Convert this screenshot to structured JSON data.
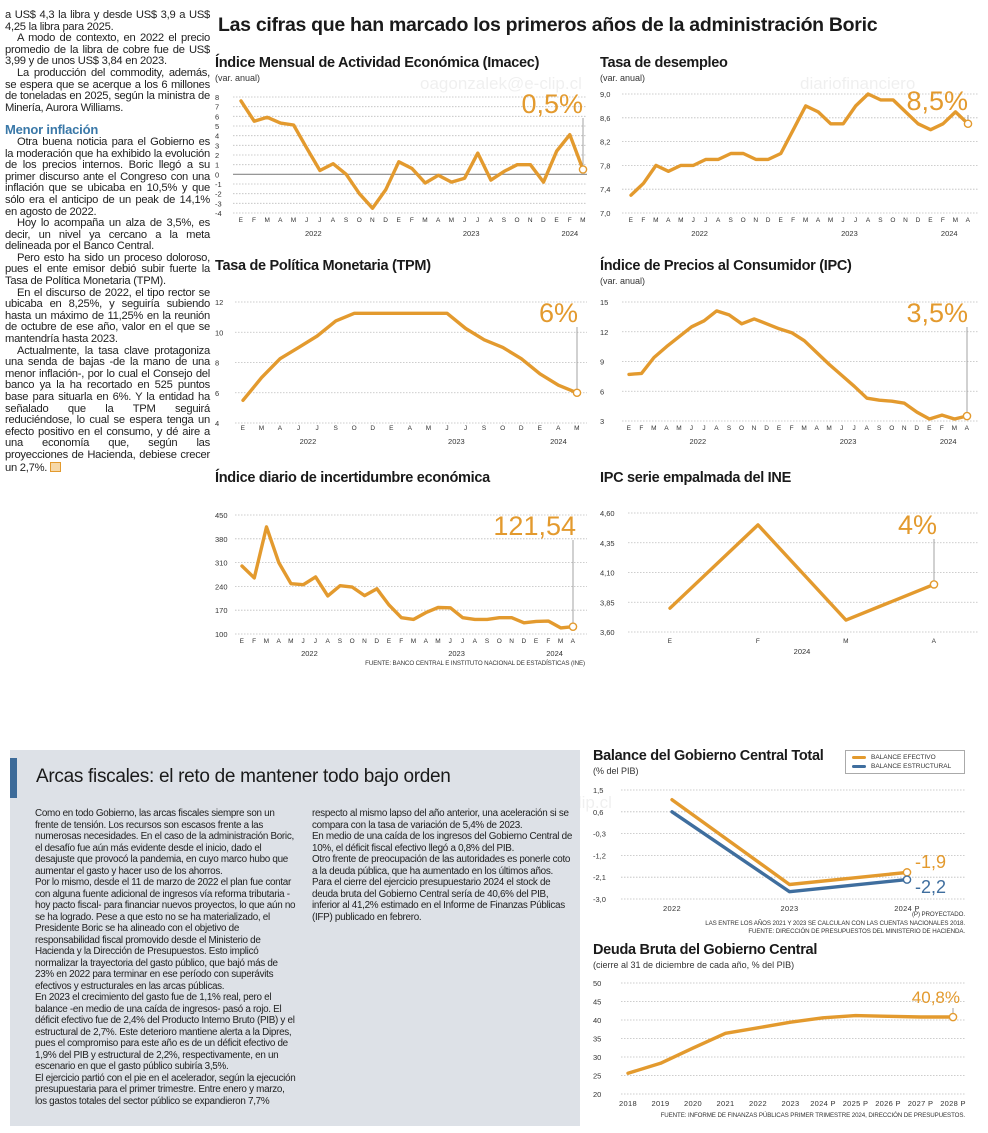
{
  "headline": "Las cifras que han marcado los primeros años de la administración Boric",
  "watermarks": [
    "oagonzalek@e-clip.cl",
    "diariofinanciero"
  ],
  "left_column": {
    "paragraphs_before": [
      "a US$ 4,3 la libra y desde US$ 3,9 a US$ 4,25 la libra para 2025.",
      "A modo de contexto, en 2022 el precio promedio de la libra de cobre fue de US$ 3,99 y de unos US$ 3,84 en 2023.",
      "La producción del commodity, además, se espera que se acerque a los 6 millones de toneladas en 2025, según la ministra de Minería, Aurora Williams."
    ],
    "subheading": "Menor inflación",
    "paragraphs_after": [
      "Otra buena noticia para el Gobierno es la moderación que ha exhibido la evolución de los precios internos. Boric llegó a su primer discurso ante el Congreso con una inflación que se ubicaba en 10,5% y que sólo era el anticipo de un peak de 14,1% en agosto de 2022.",
      "Hoy lo acompaña un alza de 3,5%, es decir, un nivel ya cercano a la meta delineada por el Banco Central.",
      "Pero esto ha sido un proceso doloroso, pues el ente emisor debió subir fuerte la Tasa de Política Monetaria (TPM).",
      "En el discurso de 2022, el tipo rector se ubicaba en 8,25%, y seguiría subiendo hasta un máximo de 11,25% en la reunión de octubre de ese año, valor en el que se mantendría hasta 2023.",
      "Actualmente, la tasa clave protagoniza una senda de bajas -de la mano de una menor inflación-, por lo cual el Consejo del banco ya la ha recortado en 525 puntos base para situarla en 6%. Y la entidad ha señalado que la TPM seguirá reduciéndose, lo cual se espera tenga un efecto positivo en el consumo, y dé aire a una economía que, según las proyecciones de Hacienda, debiese crecer un 2,7%."
    ]
  },
  "fiscal_box": {
    "title": "Arcas fiscales: el reto de mantener todo bajo orden",
    "paragraphs": [
      "Como en todo Gobierno, las arcas fiscales siempre son un frente de tensión. Los recursos son escasos frente a las numerosas necesidades. En el caso de la administración Boric, el desafío fue aún más evidente desde el inicio, dado el desajuste que provocó la pandemia, en cuyo marco hubo que aumentar el gasto y hacer uso de los ahorros.",
      "Por lo mismo, desde el 11 de marzo de 2022 el plan fue contar con alguna fuente adicional de ingresos vía reforma tributaria -hoy pacto fiscal- para financiar nuevos proyectos, lo que aún no se ha logrado. Pese a que esto no se ha materializado, el Presidente Boric se ha alineado con el objetivo de responsabilidad fiscal promovido desde el Ministerio de Hacienda y la Dirección de Presupuestos. Esto implicó normalizar la trayectoria del gasto público, que bajó más de 23% en 2022 para terminar en ese período con superávits efectivos y estructurales en las arcas públicas.",
      "En 2023 el crecimiento del gasto fue de 1,1% real, pero el balance -en medio de una caída de ingresos- pasó a rojo. El déficit efectivo fue de 2,4% del Producto Interno Bruto (PIB) y el estructural de 2,7%. Este deterioro mantiene alerta a la Dipres, pues el compromiso para este año es de un déficit efectivo de 1,9% del PIB y estructural de 2,2%, respectivamente, en un escenario en que el gasto público subiría 3,5%.",
      "El ejercicio partió con el pie en el acelerador, según la ejecución presupuestaria para el primer trimestre. Entre enero y marzo, los gastos totales del sector público se expandieron 7,7% respecto al mismo lapso del año anterior, una aceleración si se compara con la tasa de variación de 5,4% de 2023.",
      "En medio de una caída de los ingresos del Gobierno Central de 10%, el déficit fiscal efectivo llegó a 0,8% del PIB.",
      "Otro frente de preocupación de las autoridades es ponerle coto a la deuda pública, que ha aumentado en los últimos años.",
      "Para el cierre del ejercicio presupuestario 2024 el stock de deuda bruta del Gobierno Central sería de 40,6% del PIB, inferior al 41,2% estimado en el Informe de Finanzas Públicas (IFP) publicado en febrero."
    ]
  },
  "sources": {
    "indicators": "FUENTE: BANCO CENTRAL E INSTITUTO NACIONAL DE ESTADÍSTICAS (INE)",
    "balance_notes": [
      "(P) PROYECTADO.",
      "LAS ENTRE LOS AÑOS 2021 Y 2023 SE CALCULAN  CON LAS CUENTAS NACIONALES 2018.",
      "FUENTE: DIRECCIÓN DE PRESUPUESTOS DEL MINISTERIO DE HACIENDA."
    ],
    "debt": "FUENTE: INFORME DE FINANZAS PÚBLICAS PRIMER TRIMESTRE 2024, DIRECCIÓN DE PRESUPUESTOS."
  },
  "colors": {
    "orange": "#e39a2e",
    "blue": "#3f6e9e",
    "grid": "#b9b9b9",
    "box": "#dde1e7"
  },
  "chart_data": [
    {
      "id": "imacec",
      "type": "line",
      "title": "Índice Mensual de Actividad Económica (Imacec)",
      "subtitle": "(var. anual)",
      "categories": [
        "E",
        "F",
        "M",
        "A",
        "M",
        "J",
        "J",
        "A",
        "S",
        "O",
        "N",
        "D",
        "E",
        "F",
        "M",
        "A",
        "M",
        "J",
        "J",
        "A",
        "S",
        "O",
        "N",
        "D",
        "E",
        "F",
        "M"
      ],
      "x_groups": [
        {
          "label": "2022",
          "from": 0,
          "to": 11
        },
        {
          "label": "2023",
          "from": 12,
          "to": 23
        },
        {
          "label": "2024",
          "from": 24,
          "to": 26
        }
      ],
      "ylim": [
        -4,
        8
      ],
      "yticks": [
        8,
        7,
        6,
        5,
        4,
        3,
        2,
        1,
        0,
        -1,
        -2,
        -3,
        -4
      ],
      "ytick_labels": [
        "8",
        "7",
        "6",
        "5",
        "4",
        "3",
        "2",
        "1",
        "0",
        "-1",
        "-2",
        "-3",
        "-4"
      ],
      "zero_line": true,
      "grid": true,
      "series": [
        {
          "color": "#e39a2e",
          "values": [
            7.6,
            5.5,
            5.9,
            5.3,
            5.1,
            2.7,
            0.4,
            1.1,
            0.0,
            -2.0,
            -3.5,
            -1.6,
            1.3,
            0.6,
            -0.9,
            -0.1,
            -0.8,
            -0.4,
            2.2,
            -0.6,
            0.3,
            1.0,
            1.0,
            -0.8,
            2.4,
            4.1,
            0.5
          ]
        }
      ],
      "callouts": [
        {
          "text": "0,5%",
          "color": "#e39a2e"
        }
      ]
    },
    {
      "id": "desempleo",
      "type": "line",
      "title": "Tasa de desempleo",
      "subtitle": "(var. anual)",
      "categories": [
        "E",
        "F",
        "M",
        "A",
        "M",
        "J",
        "J",
        "A",
        "S",
        "O",
        "N",
        "D",
        "E",
        "F",
        "M",
        "A",
        "M",
        "J",
        "J",
        "A",
        "S",
        "O",
        "N",
        "D",
        "E",
        "F",
        "M",
        "A"
      ],
      "x_groups": [
        {
          "label": "2022",
          "from": 0,
          "to": 11
        },
        {
          "label": "2023",
          "from": 12,
          "to": 23
        },
        {
          "label": "2024",
          "from": 24,
          "to": 27
        }
      ],
      "ylim": [
        7.0,
        9.0
      ],
      "yticks": [
        9.0,
        8.6,
        8.2,
        7.8,
        7.4,
        7.0
      ],
      "ytick_labels": [
        "9,0",
        "8,6",
        "8,2",
        "7,8",
        "7,4",
        "7,0"
      ],
      "grid": true,
      "series": [
        {
          "color": "#e39a2e",
          "values": [
            7.3,
            7.5,
            7.8,
            7.7,
            7.8,
            7.8,
            7.9,
            7.9,
            8.0,
            8.0,
            7.9,
            7.9,
            8.0,
            8.4,
            8.8,
            8.7,
            8.5,
            8.5,
            8.8,
            9.0,
            8.9,
            8.9,
            8.7,
            8.5,
            8.4,
            8.5,
            8.7,
            8.5
          ]
        }
      ],
      "callouts": [
        {
          "text": "8,5%",
          "color": "#e39a2e"
        }
      ]
    },
    {
      "id": "tpm",
      "type": "line",
      "title": "Tasa de Política Monetaria (TPM)",
      "subtitle": "",
      "categories": [
        "E",
        "M",
        "A",
        "J",
        "J",
        "S",
        "O",
        "D",
        "E",
        "A",
        "M",
        "J",
        "J",
        "S",
        "O",
        "D",
        "E",
        "A",
        "M"
      ],
      "x_groups": [
        {
          "label": "2022",
          "from": 0,
          "to": 7
        },
        {
          "label": "2023",
          "from": 8,
          "to": 15
        },
        {
          "label": "2024",
          "from": 16,
          "to": 18
        }
      ],
      "ylim": [
        4,
        12
      ],
      "yticks": [
        12,
        10,
        8,
        6,
        4
      ],
      "ytick_labels": [
        "12",
        "10",
        "8",
        "6",
        "4"
      ],
      "grid": true,
      "series": [
        {
          "color": "#e39a2e",
          "values": [
            5.5,
            7.0,
            8.25,
            9.0,
            9.75,
            10.75,
            11.25,
            11.25,
            11.25,
            11.25,
            11.25,
            11.25,
            10.25,
            9.5,
            9.0,
            8.25,
            7.25,
            6.5,
            6.0
          ]
        }
      ],
      "callouts": [
        {
          "text": "6%",
          "color": "#e39a2e"
        }
      ]
    },
    {
      "id": "ipc",
      "type": "line",
      "title": "Índice de Precios al Consumidor (IPC)",
      "subtitle": "(var. anual)",
      "categories": [
        "E",
        "F",
        "M",
        "A",
        "M",
        "J",
        "J",
        "A",
        "S",
        "O",
        "N",
        "D",
        "E",
        "F",
        "M",
        "A",
        "M",
        "J",
        "J",
        "A",
        "S",
        "O",
        "N",
        "D",
        "E",
        "F",
        "M",
        "A"
      ],
      "x_groups": [
        {
          "label": "2022",
          "from": 0,
          "to": 11
        },
        {
          "label": "2023",
          "from": 12,
          "to": 23
        },
        {
          "label": "2024",
          "from": 24,
          "to": 27
        }
      ],
      "ylim": [
        3,
        15
      ],
      "yticks": [
        15,
        12,
        9,
        6,
        3
      ],
      "ytick_labels": [
        "15",
        "12",
        "9",
        "6",
        "3"
      ],
      "grid": true,
      "series": [
        {
          "color": "#e39a2e",
          "values": [
            7.7,
            7.8,
            9.4,
            10.5,
            11.5,
            12.5,
            13.1,
            14.1,
            13.7,
            12.8,
            13.3,
            12.8,
            12.3,
            11.9,
            11.1,
            9.9,
            8.7,
            7.6,
            6.5,
            5.3,
            5.1,
            5.0,
            4.8,
            3.9,
            3.2,
            3.6,
            3.2,
            3.5
          ]
        }
      ],
      "callouts": [
        {
          "text": "3,5%",
          "color": "#e39a2e"
        }
      ]
    },
    {
      "id": "incertidumbre",
      "type": "line",
      "title": "Índice diario de incertidumbre económica",
      "subtitle": "",
      "categories": [
        "E",
        "F",
        "M",
        "A",
        "M",
        "J",
        "J",
        "A",
        "S",
        "O",
        "N",
        "D",
        "E",
        "F",
        "M",
        "A",
        "M",
        "J",
        "J",
        "A",
        "S",
        "O",
        "N",
        "D",
        "E",
        "F",
        "M",
        "A"
      ],
      "x_groups": [
        {
          "label": "2022",
          "from": 0,
          "to": 11
        },
        {
          "label": "2023",
          "from": 12,
          "to": 23
        },
        {
          "label": "2024",
          "from": 24,
          "to": 27
        }
      ],
      "ylim": [
        100,
        450
      ],
      "yticks": [
        450,
        380,
        310,
        240,
        170,
        100
      ],
      "ytick_labels": [
        "450",
        "380",
        "310",
        "240",
        "170",
        "100"
      ],
      "grid": true,
      "series": [
        {
          "color": "#e39a2e",
          "values": [
            300,
            265,
            415,
            310,
            248,
            245,
            268,
            212,
            242,
            238,
            213,
            233,
            185,
            148,
            143,
            163,
            178,
            177,
            148,
            143,
            143,
            148,
            148,
            133,
            137,
            138,
            118,
            121.54
          ]
        }
      ],
      "callouts": [
        {
          "text": "121,54",
          "color": "#e39a2e"
        }
      ]
    },
    {
      "id": "ipc_empalmada",
      "type": "line",
      "title": "IPC serie empalmada del INE",
      "subtitle": "",
      "categories": [
        "E",
        "F",
        "M",
        "A"
      ],
      "x_groups": [
        {
          "label": "2024",
          "from": 0,
          "to": 3
        }
      ],
      "ylim": [
        3.6,
        4.6
      ],
      "yticks": [
        4.6,
        4.35,
        4.1,
        3.85,
        3.6
      ],
      "ytick_labels": [
        "4,60",
        "4,35",
        "4,10",
        "3,85",
        "3,60"
      ],
      "grid": true,
      "series": [
        {
          "color": "#e39a2e",
          "values": [
            3.8,
            4.5,
            3.7,
            4.0
          ]
        }
      ],
      "callouts": [
        {
          "text": "4%",
          "color": "#e39a2e"
        }
      ]
    },
    {
      "id": "balance",
      "type": "line",
      "title": "Balance del Gobierno Central Total",
      "subtitle": "(% del PIB)",
      "categories": [
        "2022",
        "2023",
        "2024 P"
      ],
      "ylim": [
        -3.0,
        1.5
      ],
      "yticks": [
        1.5,
        0.6,
        -0.3,
        -1.2,
        -2.1,
        -3.0
      ],
      "ytick_labels": [
        "1,5",
        "0,6",
        "-0,3",
        "-1,2",
        "-2,1",
        "-3,0"
      ],
      "grid": true,
      "legend": {
        "placement": "top-right"
      },
      "series": [
        {
          "name": "BALANCE EFECTIVO",
          "color": "#e39a2e",
          "values": [
            1.1,
            -2.4,
            -1.9
          ]
        },
        {
          "name": "BALANCE ESTRUCTURAL",
          "color": "#3f6e9e",
          "values": [
            0.6,
            -2.7,
            -2.2
          ]
        }
      ],
      "callouts": [
        {
          "text": "-1,9",
          "color": "#e39a2e"
        },
        {
          "text": "-2,2",
          "color": "#3f6e9e"
        }
      ]
    },
    {
      "id": "deuda",
      "type": "line",
      "title": "Deuda Bruta del Gobierno Central",
      "subtitle": "(cierre al 31 de diciembre de cada año, % del PIB)",
      "categories": [
        "2018",
        "2019",
        "2020",
        "2021",
        "2022",
        "2023",
        "2024 P",
        "2025 P",
        "2026 P",
        "2027 P",
        "2028 P"
      ],
      "ylim": [
        20,
        50
      ],
      "yticks": [
        50,
        45,
        40,
        35,
        30,
        25,
        20
      ],
      "ytick_labels": [
        "50",
        "45",
        "40",
        "35",
        "30",
        "25",
        "20"
      ],
      "grid": true,
      "series": [
        {
          "color": "#e39a2e",
          "values": [
            25.6,
            28.3,
            32.4,
            36.4,
            37.9,
            39.4,
            40.6,
            41.2,
            41.0,
            40.8,
            40.8
          ]
        }
      ],
      "callouts": [
        {
          "text": "40,8%",
          "color": "#e39a2e"
        }
      ]
    }
  ]
}
